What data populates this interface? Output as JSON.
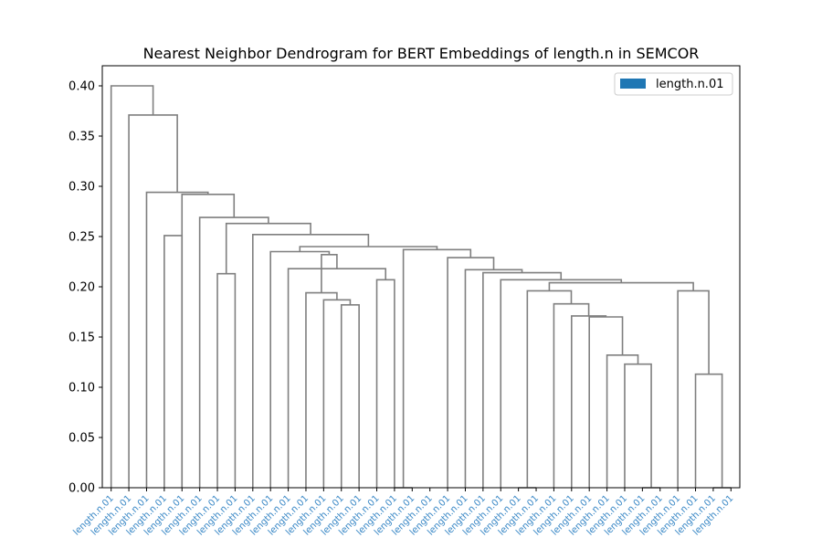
{
  "chart_data": {
    "type": "dendrogram",
    "title": "Nearest Neighbor Dendrogram for BERT Embeddings of length.n in SEMCOR",
    "xlabel": "",
    "ylabel": "",
    "ylim": [
      0,
      0.42
    ],
    "yticks": [
      "0.00",
      "0.05",
      "0.10",
      "0.15",
      "0.20",
      "0.25",
      "0.30",
      "0.35",
      "0.40"
    ],
    "link_color": "#7f7f7f",
    "label_color": "#3a88c6",
    "legend": {
      "position": "top-right",
      "entries": [
        {
          "label": "length.n.01",
          "color": "#1f77b4"
        }
      ]
    },
    "leaves": [
      "length.n.01",
      "length.n.01",
      "length.n.01",
      "length.n.01",
      "length.n.01",
      "length.n.01",
      "length.n.01",
      "length.n.01",
      "length.n.01",
      "length.n.01",
      "length.n.01",
      "length.n.01",
      "length.n.01",
      "length.n.01",
      "length.n.01",
      "length.n.01",
      "length.n.01",
      "length.n.01",
      "length.n.01",
      "length.n.01",
      "length.n.01",
      "length.n.01",
      "length.n.01",
      "length.n.01",
      "length.n.01",
      "length.n.01",
      "length.n.01",
      "length.n.01",
      "length.n.01",
      "length.n.01",
      "length.n.01",
      "length.n.01",
      "length.n.01",
      "length.n.01",
      "length.n.01",
      "length.n.01"
    ],
    "merges": [
      {
        "id": 100,
        "left": 23,
        "right": 24,
        "height": 0.0
      },
      {
        "id": 101,
        "left": 30,
        "right": 31,
        "height": 0.0
      },
      {
        "id": 102,
        "left": 34,
        "right": 35,
        "height": 0.0
      },
      {
        "id": 103,
        "left": 16,
        "right": 17,
        "height": 0.0
      },
      {
        "id": 104,
        "left": 33,
        "right": 102,
        "height": 0.113
      },
      {
        "id": 105,
        "left": 29,
        "right": 101,
        "height": 0.123
      },
      {
        "id": 106,
        "left": 28,
        "right": 105,
        "height": 0.132
      },
      {
        "id": 107,
        "left": 27,
        "right": 106,
        "height": 0.17
      },
      {
        "id": 108,
        "left": 26,
        "right": 107,
        "height": 0.171
      },
      {
        "id": 109,
        "left": 13,
        "right": 14,
        "height": 0.182
      },
      {
        "id": 110,
        "left": 25,
        "right": 108,
        "height": 0.183
      },
      {
        "id": 111,
        "left": 12,
        "right": 109,
        "height": 0.187
      },
      {
        "id": 112,
        "left": 11,
        "right": 111,
        "height": 0.194
      },
      {
        "id": 113,
        "left": 32,
        "right": 104,
        "height": 0.196
      },
      {
        "id": 114,
        "left": 100,
        "right": 110,
        "height": 0.196
      },
      {
        "id": 115,
        "left": 114,
        "right": 113,
        "height": 0.204
      },
      {
        "id": 116,
        "left": 22,
        "right": 115,
        "height": 0.207
      },
      {
        "id": 117,
        "left": 21,
        "right": 116,
        "height": 0.214
      },
      {
        "id": 118,
        "left": 20,
        "right": 117,
        "height": 0.217
      },
      {
        "id": 119,
        "left": 19,
        "right": 118,
        "height": 0.229
      },
      {
        "id": 120,
        "left": 103,
        "right": 119,
        "height": 0.237
      },
      {
        "id": 121,
        "left": 15,
        "right": 16,
        "height": 0.207
      },
      {
        "id": 122,
        "left": 6,
        "right": 7,
        "height": 0.213
      },
      {
        "id": 123,
        "left": 10,
        "right": 121,
        "height": 0.218
      },
      {
        "id": 124,
        "left": 112,
        "right": 123,
        "height": 0.232
      },
      {
        "id": 125,
        "left": 9,
        "right": 124,
        "height": 0.235
      },
      {
        "id": 126,
        "left": 125,
        "right": 120,
        "height": 0.24
      },
      {
        "id": 127,
        "left": 8,
        "right": 126,
        "height": 0.252
      },
      {
        "id": 128,
        "left": 122,
        "right": 127,
        "height": 0.263
      },
      {
        "id": 129,
        "left": 5,
        "right": 128,
        "height": 0.269
      },
      {
        "id": 130,
        "left": 4,
        "right": 129,
        "height": 0.292
      },
      {
        "id": 131,
        "left": 3,
        "right": 4,
        "height": 0.251
      },
      {
        "id": 132,
        "left": 2,
        "right": 130,
        "height": 0.294
      },
      {
        "id": 133,
        "left": 1,
        "right": 132,
        "height": 0.371
      },
      {
        "id": 134,
        "left": 0,
        "right": 133,
        "height": 0.4
      }
    ]
  }
}
